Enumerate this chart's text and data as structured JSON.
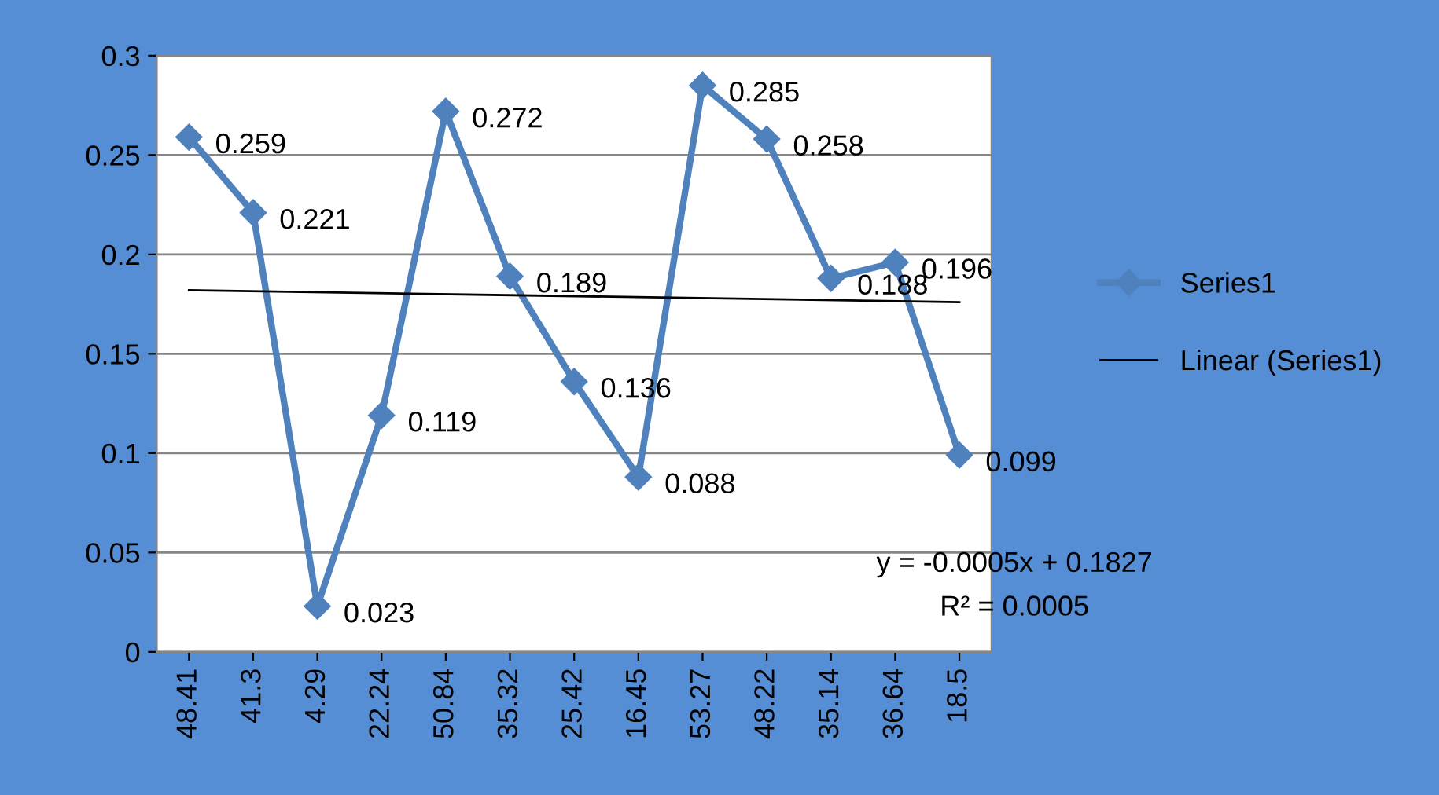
{
  "chart_data": {
    "type": "line",
    "categories": [
      "48.41",
      "41.3",
      "4.29",
      "22.24",
      "50.84",
      "35.32",
      "25.42",
      "16.45",
      "53.27",
      "48.22",
      "35.14",
      "36.64",
      "18.5"
    ],
    "series": [
      {
        "name": "Series1",
        "color": "#4f81bd",
        "values": [
          0.259,
          0.221,
          0.023,
          0.119,
          0.272,
          0.189,
          0.136,
          0.088,
          0.285,
          0.258,
          0.188,
          0.196,
          0.099
        ],
        "marker": "diamond",
        "data_labels": true
      },
      {
        "name": "Linear (Series1)",
        "color": "#000000",
        "type": "line",
        "x": [
          "48.41",
          "18.5"
        ],
        "values": [
          0.182,
          0.176
        ],
        "marker": "none"
      }
    ],
    "ylim": [
      0,
      0.3
    ],
    "yticks": [
      0,
      {
        "value": 0.05,
        "label": "0.05"
      },
      {
        "value": 0.1,
        "label": "0.1"
      },
      {
        "value": 0.15,
        "label": "0.15"
      },
      {
        "value": 0.2,
        "label": "0.2"
      },
      {
        "value": 0.25,
        "label": "0.25"
      },
      {
        "value": 0.3,
        "label": "0.3"
      }
    ],
    "grid": "y",
    "legend": "right",
    "annotations": [
      "y = -0.0005x + 0.1827",
      "R² = 0.0005"
    ]
  }
}
